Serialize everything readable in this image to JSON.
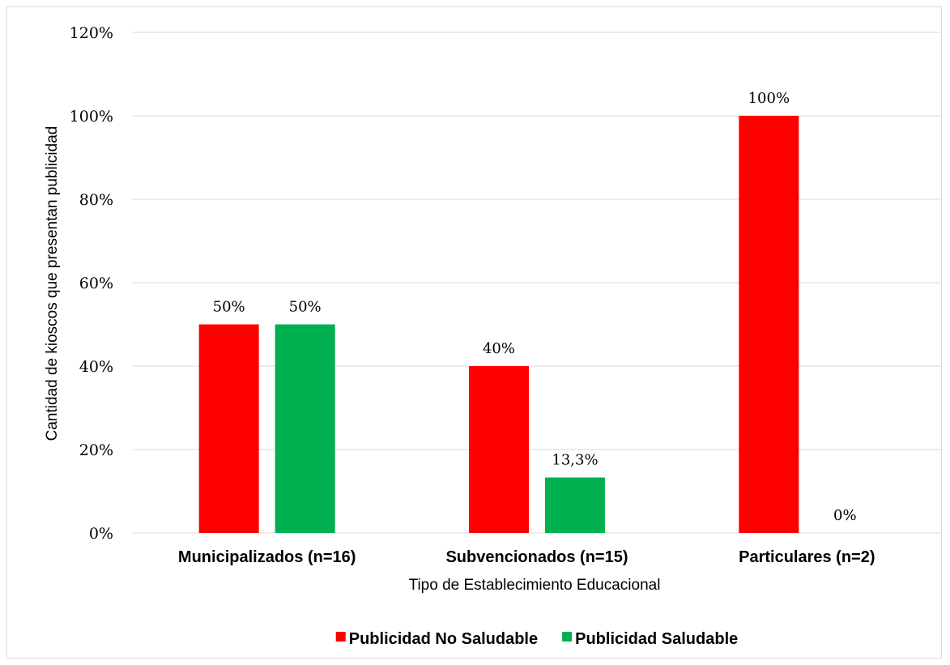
{
  "chart_data": {
    "type": "bar",
    "categories": [
      "Municipalizados (n=16)",
      "Subvencionados (n=15)",
      "Particulares (n=2)"
    ],
    "series": [
      {
        "name": "Publicidad No Saludable",
        "values": [
          50,
          40,
          100
        ],
        "labels": [
          "50%",
          "40%",
          "100%"
        ],
        "color": "#ff0000"
      },
      {
        "name": "Publicidad Saludable",
        "values": [
          50,
          13.3,
          0
        ],
        "labels": [
          "50%",
          "13,3%",
          "0%"
        ],
        "color": "#00b050"
      }
    ],
    "xlabel": "Tipo de Establecimiento Educacional",
    "ylabel": "Cantidad de kioscos que presentan publicidad",
    "ylim": [
      0,
      120
    ],
    "yticks": [
      0,
      20,
      40,
      60,
      80,
      100,
      120
    ],
    "ytick_labels": [
      "0%",
      "20%",
      "40%",
      "60%",
      "80%",
      "100%",
      "120%"
    ],
    "grid": true,
    "legend": "bottom",
    "gridline_color": "#d9d9d9"
  }
}
